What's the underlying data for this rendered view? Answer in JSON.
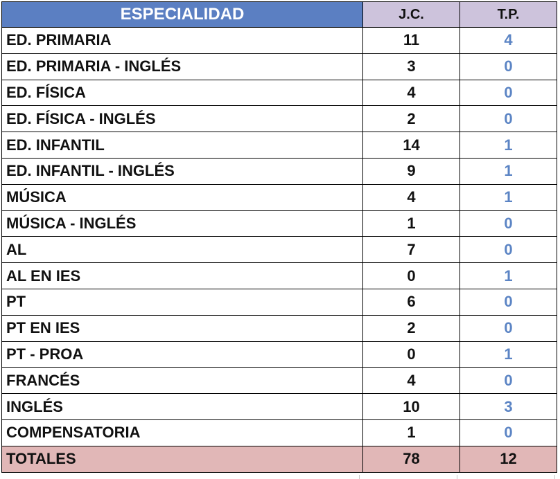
{
  "headers": {
    "specialty": "ESPECIALIDAD",
    "jc": "J.C.",
    "tp": "T.P."
  },
  "rows": [
    {
      "name": "ED. PRIMARIA",
      "jc": "11",
      "tp": "4"
    },
    {
      "name": "ED. PRIMARIA - INGLÉS",
      "jc": "3",
      "tp": "0"
    },
    {
      "name": "ED. FÍSICA",
      "jc": "4",
      "tp": "0"
    },
    {
      "name": "ED. FÍSICA - INGLÉS",
      "jc": "2",
      "tp": "0"
    },
    {
      "name": "ED. INFANTIL",
      "jc": "14",
      "tp": "1"
    },
    {
      "name": "ED. INFANTIL - INGLÉS",
      "jc": "9",
      "tp": "1"
    },
    {
      "name": "MÚSICA",
      "jc": "4",
      "tp": "1"
    },
    {
      "name": "MÚSICA - INGLÉS",
      "jc": "1",
      "tp": "0"
    },
    {
      "name": "AL",
      "jc": "7",
      "tp": "0"
    },
    {
      "name": "AL EN IES",
      "jc": "0",
      "tp": "1"
    },
    {
      "name": "PT",
      "jc": "6",
      "tp": "0"
    },
    {
      "name": "PT EN IES",
      "jc": "2",
      "tp": "0"
    },
    {
      "name": "PT - PROA",
      "jc": "0",
      "tp": "1"
    },
    {
      "name": "FRANCÉS",
      "jc": "4",
      "tp": "0"
    },
    {
      "name": "INGLÉS",
      "jc": "10",
      "tp": "3"
    },
    {
      "name": "COMPENSATORIA",
      "jc": "1",
      "tp": "0"
    }
  ],
  "totals": {
    "label": "TOTALES",
    "jc": "78",
    "tp": "12"
  },
  "colors": {
    "header_specialty_bg": "#5b7fc2",
    "header_count_bg": "#cdc3dc",
    "tp_value_color": "#5b84c4",
    "totals_bg": "#e1b7b7"
  }
}
